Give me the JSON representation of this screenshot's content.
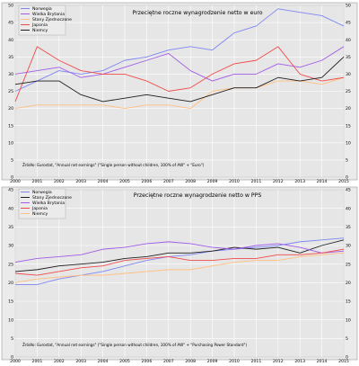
{
  "chart_data": [
    {
      "type": "line",
      "title": "Przeciętne roczne wynagrodzenie netto w euro",
      "source": "Źródło: Eurostat, \"Annual net earnings\" (\"Single person without children, 100% of AW\" + \"Euro\")",
      "x": [
        "2000",
        "2001",
        "2002",
        "2003",
        "2004",
        "2005",
        "2006",
        "2007",
        "2008",
        "2009",
        "2010",
        "2011",
        "2012",
        "2013",
        "2014",
        "2015"
      ],
      "ylim": [
        0,
        50
      ],
      "yticks": [
        0,
        5,
        10,
        15,
        20,
        25,
        30,
        35,
        40,
        45,
        50
      ],
      "y_axis_left": true,
      "y_axis_right": true,
      "grid": true,
      "legend_position": "top-left",
      "series": [
        {
          "name": "Norwegia",
          "color": "#7f86f2",
          "values": [
            25,
            28,
            31,
            30,
            31,
            34,
            35,
            37,
            38,
            37,
            42,
            44,
            49,
            48,
            47,
            44
          ]
        },
        {
          "name": "Wielka Brytania",
          "color": "#a05ce6",
          "values": [
            30,
            31,
            32,
            29,
            30,
            32,
            34,
            36,
            31,
            28,
            30,
            30,
            33,
            32,
            34,
            38
          ]
        },
        {
          "name": "Stany Zjednoczone",
          "color": "#ffbf80",
          "values": [
            20,
            21,
            21,
            21,
            21,
            20,
            21,
            21,
            20,
            25,
            26,
            26,
            28,
            28,
            27,
            29
          ]
        },
        {
          "name": "Japonia",
          "color": "#f04b4b",
          "values": [
            22,
            38,
            34,
            31,
            30,
            30,
            28,
            25,
            26,
            30,
            33,
            34,
            38,
            30,
            28,
            29
          ]
        },
        {
          "name": "Niemcy",
          "color": "#1e1e1e",
          "values": [
            27,
            28,
            28,
            24,
            22,
            23,
            24,
            23,
            22,
            24,
            26,
            26,
            29,
            28,
            29,
            35
          ]
        }
      ]
    },
    {
      "type": "line",
      "title": "Przeciętne roczne wynagrodzenie netto w PPS",
      "source": "Źródło: Eurostat, \"Annual net earnings\" (\"Single person without children, 100% of AW\" + \"Purchasing Power Standard\")",
      "x": [
        "2000",
        "2001",
        "2002",
        "2003",
        "2004",
        "2005",
        "2006",
        "2007",
        "2008",
        "2009",
        "2010",
        "2011",
        "2012",
        "2013",
        "2014",
        "2015"
      ],
      "ylim": [
        0,
        45
      ],
      "yticks": [
        0,
        5,
        10,
        15,
        20,
        25,
        30,
        35,
        40,
        45
      ],
      "y_axis_left": true,
      "y_axis_right": true,
      "grid": true,
      "legend_position": "top-left",
      "series": [
        {
          "name": "Norwegia",
          "color": "#7f86f2",
          "values": [
            19.5,
            19.5,
            21,
            22,
            23,
            24.5,
            26,
            27,
            27.5,
            28.5,
            29,
            29.5,
            30,
            31,
            31.5,
            32
          ]
        },
        {
          "name": "Stany Zjednoczone",
          "color": "#1e1e1e",
          "values": [
            23,
            23.5,
            24.5,
            25,
            25.5,
            26.5,
            27,
            28,
            28,
            28.5,
            29.5,
            29,
            29.5,
            28,
            30,
            31.5
          ]
        },
        {
          "name": "Wielka Brytania",
          "color": "#a05ce6",
          "values": [
            25.5,
            26.5,
            27,
            27.5,
            29,
            29.5,
            30.5,
            31,
            30.5,
            29.5,
            29,
            30,
            30.5,
            29.5,
            28,
            28.5
          ]
        },
        {
          "name": "Japonia",
          "color": "#f04b4b",
          "values": [
            22.5,
            22,
            23,
            24,
            24.5,
            26,
            26.5,
            27,
            26,
            26,
            26.5,
            26.5,
            27.5,
            27.5,
            28,
            29
          ]
        },
        {
          "name": "Niemcy",
          "color": "#ffbf80",
          "values": [
            20,
            21,
            21.5,
            22,
            22,
            22.5,
            23,
            23.5,
            23.5,
            24.5,
            25.5,
            26,
            26,
            27,
            27.5,
            28
          ]
        }
      ]
    }
  ]
}
